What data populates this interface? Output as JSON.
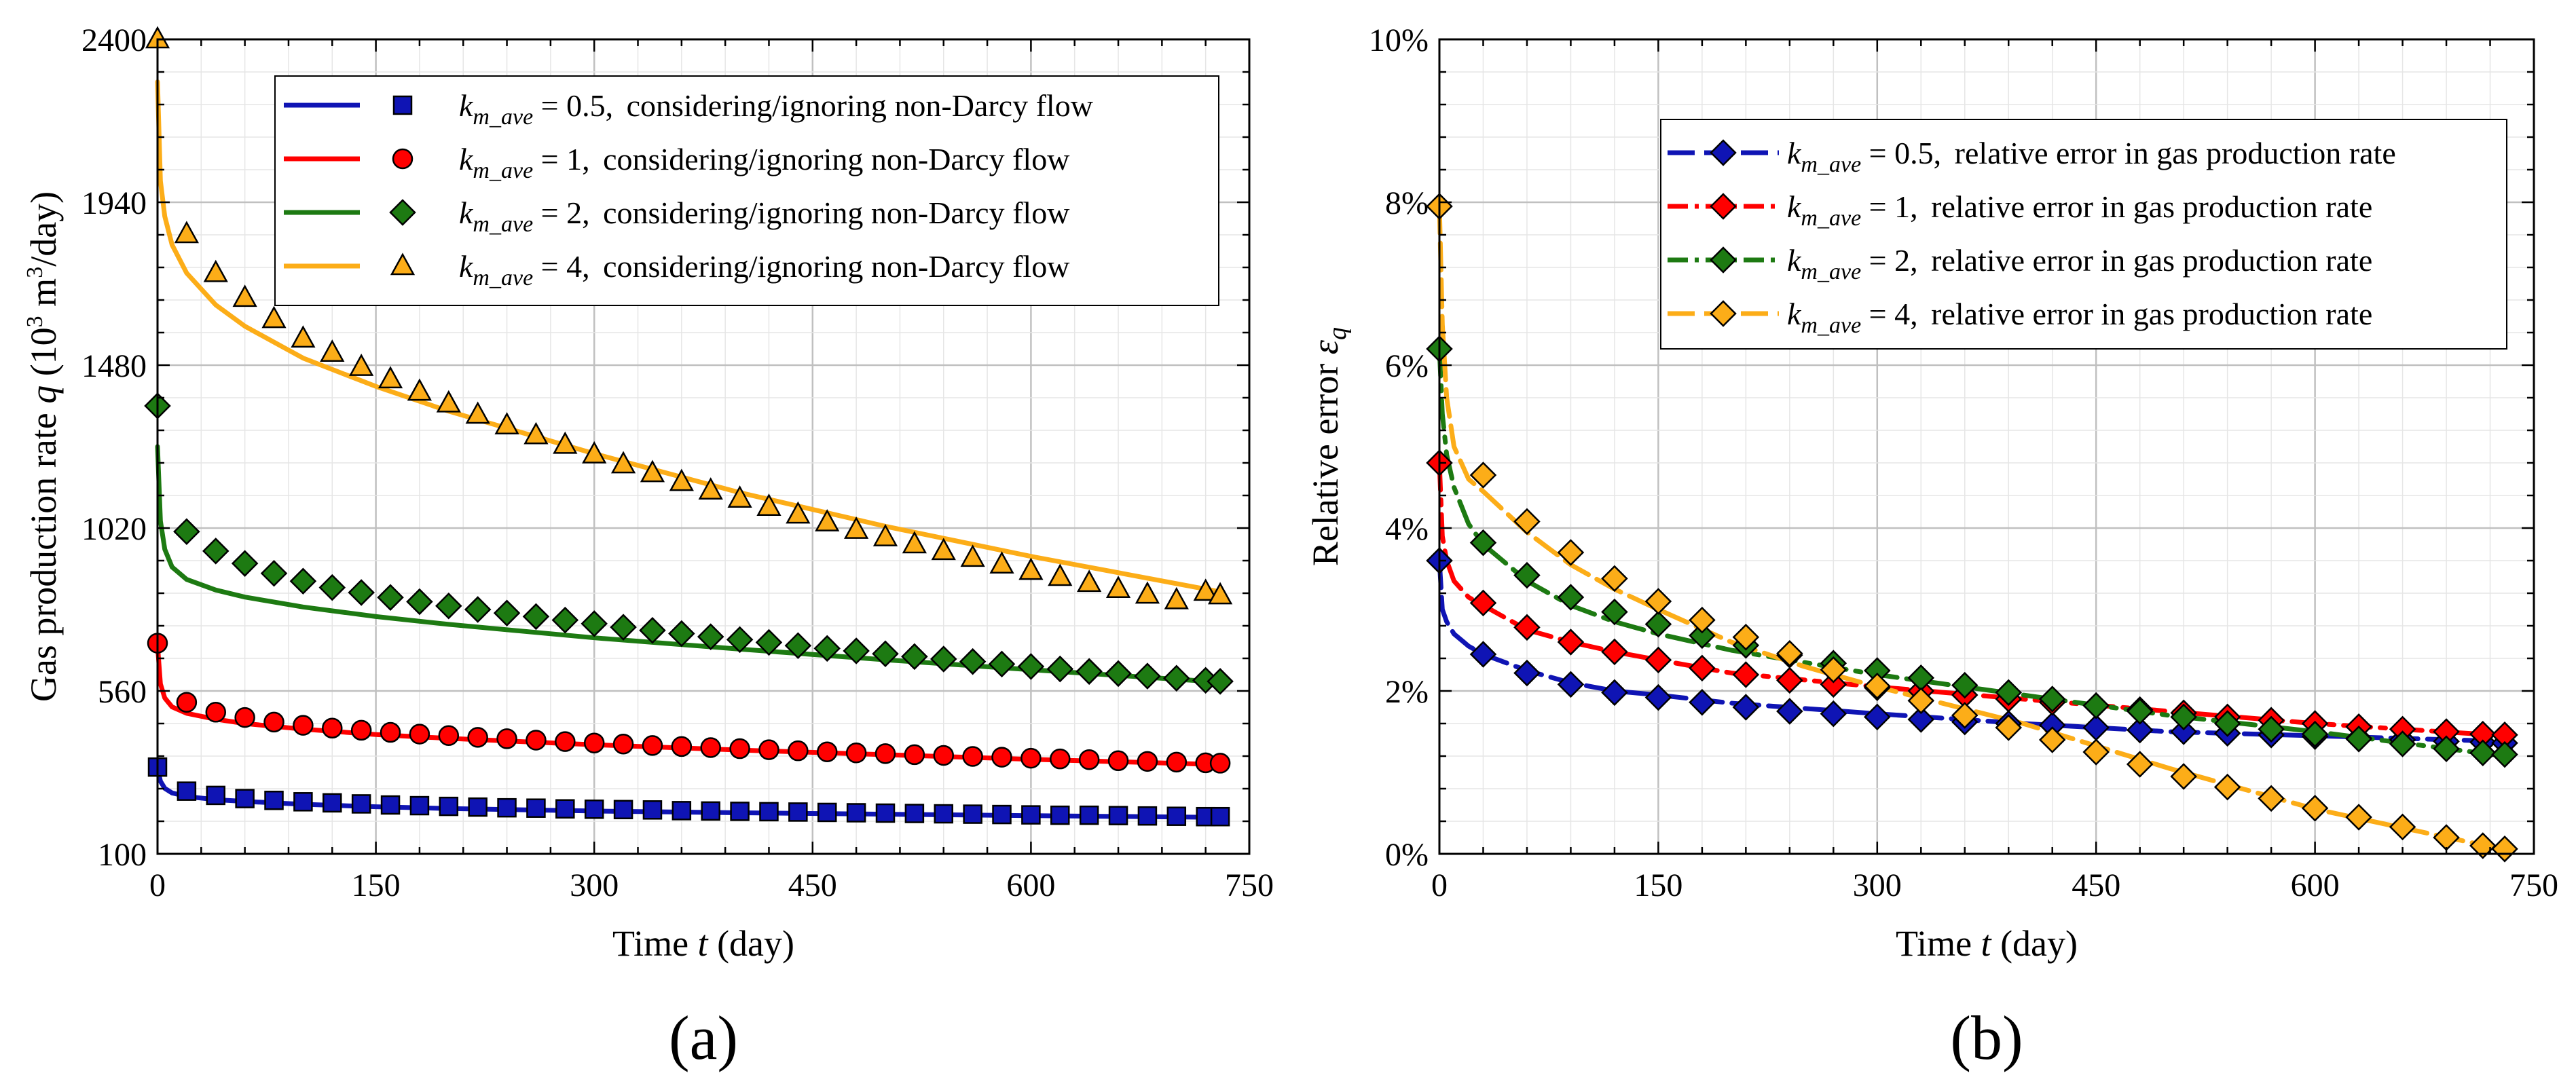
{
  "panels": [
    {
      "label": "(a)",
      "xlabel_parts": [
        "Time ",
        "t",
        " (day)"
      ],
      "ylabel_parts": [
        "Gas production rate ",
        "q",
        " (10",
        "3",
        " m",
        "3",
        "/day)"
      ],
      "xticks": [
        "0",
        "150",
        "300",
        "450",
        "600",
        "750"
      ],
      "yticks": [
        "100",
        "560",
        "1020",
        "1480",
        "1940",
        "2400"
      ],
      "legend": [
        {
          "sym": "k",
          "sub": "m_ave",
          "eq": " = 0.5, ",
          "desc": "considering/ignoring non-Darcy flow"
        },
        {
          "sym": "k",
          "sub": "m_ave",
          "eq": " = 1, ",
          "desc": "considering/ignoring non-Darcy flow"
        },
        {
          "sym": "k",
          "sub": "m_ave",
          "eq": " = 2, ",
          "desc": "considering/ignoring non-Darcy flow"
        },
        {
          "sym": "k",
          "sub": "m_ave",
          "eq": " = 4, ",
          "desc": "considering/ignoring non-Darcy flow"
        }
      ]
    },
    {
      "label": "(b)",
      "xlabel_parts": [
        "Time ",
        "t",
        " (day)"
      ],
      "ylabel_parts": [
        "Relative error ",
        "ε",
        "q"
      ],
      "xticks": [
        "0",
        "150",
        "300",
        "450",
        "600",
        "750"
      ],
      "yticks": [
        "0%",
        "2%",
        "4%",
        "6%",
        "8%",
        "10%"
      ],
      "legend": [
        {
          "sym": "k",
          "sub": "m_ave",
          "eq": " = 0.5, ",
          "desc": "relative error in gas production rate"
        },
        {
          "sym": "k",
          "sub": "m_ave",
          "eq": " = 1, ",
          "desc": "relative error in gas production rate"
        },
        {
          "sym": "k",
          "sub": "m_ave",
          "eq": " = 2, ",
          "desc": "relative error in gas production rate"
        },
        {
          "sym": "k",
          "sub": "m_ave",
          "eq": " = 4, ",
          "desc": "relative error in gas production rate"
        }
      ]
    }
  ],
  "colors": {
    "blue": "#0f14b4",
    "red": "#ff0000",
    "green": "#1d7a12",
    "orange": "#fcad18",
    "grid_major": "#c0c0c0",
    "grid_minor": "#e6e6e6"
  },
  "chart_data": [
    {
      "type": "line",
      "xlabel": "Time t (day)",
      "ylabel": "Gas production rate q (10^3 m^3/day)",
      "xlim": [
        0,
        750
      ],
      "ylim": [
        100,
        2400
      ],
      "grid": true,
      "legend_position": "top-right",
      "series": [
        {
          "name": "k_m_ave = 0.5, considering/ignoring non-Darcy flow",
          "color": "blue",
          "marker": "square",
          "curve_x": [
            0,
            2,
            5,
            10,
            20,
            40,
            60,
            100,
            150,
            200,
            300,
            400,
            500,
            600,
            730
          ],
          "curve_y": [
            345,
            305,
            285,
            272,
            262,
            253,
            248,
            240,
            233,
            228,
            221,
            216,
            212,
            208,
            203
          ],
          "points_x": [
            0,
            20,
            40,
            60,
            80,
            100,
            120,
            140,
            160,
            180,
            200,
            220,
            240,
            260,
            280,
            300,
            320,
            340,
            360,
            380,
            400,
            420,
            440,
            460,
            480,
            500,
            520,
            540,
            560,
            580,
            600,
            620,
            640,
            660,
            680,
            700,
            720,
            730
          ],
          "points_y": [
            345,
            277,
            265,
            256,
            251,
            247,
            244,
            241,
            238,
            236,
            234,
            232,
            230,
            229,
            227,
            226,
            225,
            224,
            222,
            221,
            220,
            219,
            218,
            217,
            216,
            215,
            214,
            213,
            212,
            211,
            210,
            209,
            209,
            208,
            207,
            206,
            205,
            205
          ]
        },
        {
          "name": "k_m_ave = 1, considering/ignoring non-Darcy flow",
          "color": "red",
          "marker": "circle",
          "curve_x": [
            0,
            2,
            5,
            10,
            20,
            40,
            60,
            100,
            150,
            200,
            300,
            400,
            500,
            600,
            730
          ],
          "curve_y": [
            690,
            580,
            540,
            515,
            497,
            480,
            468,
            452,
            437,
            426,
            408,
            393,
            380,
            367,
            352
          ],
          "points_x": [
            0,
            20,
            40,
            60,
            80,
            100,
            120,
            140,
            160,
            180,
            200,
            220,
            240,
            260,
            280,
            300,
            320,
            340,
            360,
            380,
            400,
            420,
            440,
            460,
            480,
            500,
            520,
            540,
            560,
            580,
            600,
            620,
            640,
            660,
            680,
            700,
            720,
            730
          ],
          "points_y": [
            695,
            528,
            500,
            485,
            472,
            463,
            455,
            449,
            443,
            438,
            434,
            429,
            425,
            421,
            417,
            413,
            410,
            406,
            403,
            400,
            397,
            394,
            391,
            388,
            385,
            383,
            380,
            378,
            375,
            373,
            370,
            368,
            366,
            363,
            361,
            359,
            357,
            356
          ]
        },
        {
          "name": "k_m_ave = 2, considering/ignoring non-Darcy flow",
          "color": "green",
          "marker": "diamond",
          "curve_x": [
            0,
            2,
            5,
            10,
            20,
            40,
            60,
            100,
            150,
            200,
            300,
            400,
            500,
            600,
            730
          ],
          "curve_y": [
            1250,
            1040,
            960,
            910,
            875,
            845,
            825,
            797,
            770,
            748,
            710,
            678,
            648,
            620,
            585
          ],
          "points_x": [
            0,
            20,
            40,
            60,
            80,
            100,
            120,
            140,
            160,
            180,
            200,
            220,
            240,
            260,
            280,
            300,
            320,
            340,
            360,
            380,
            400,
            420,
            440,
            460,
            480,
            500,
            520,
            540,
            560,
            580,
            600,
            620,
            640,
            660,
            680,
            700,
            720,
            730
          ],
          "points_y": [
            1365,
            1010,
            955,
            920,
            892,
            870,
            852,
            838,
            824,
            812,
            800,
            790,
            780,
            770,
            760,
            750,
            740,
            731,
            722,
            713,
            705,
            697,
            688,
            680,
            673,
            665,
            657,
            650,
            643,
            636,
            629,
            622,
            615,
            609,
            602,
            596,
            590,
            587
          ]
        },
        {
          "name": "k_m_ave = 4, considering/ignoring non-Darcy flow",
          "color": "orange",
          "marker": "triangle",
          "curve_x": [
            0,
            2,
            5,
            10,
            20,
            40,
            60,
            100,
            150,
            200,
            250,
            300,
            400,
            500,
            600,
            730
          ],
          "curve_y": [
            2280,
            2000,
            1900,
            1820,
            1740,
            1650,
            1590,
            1500,
            1420,
            1350,
            1290,
            1230,
            1120,
            1025,
            940,
            840
          ],
          "points_x": [
            0,
            20,
            40,
            60,
            80,
            100,
            120,
            140,
            160,
            180,
            200,
            220,
            240,
            260,
            280,
            300,
            320,
            340,
            360,
            380,
            400,
            420,
            440,
            460,
            480,
            500,
            520,
            540,
            560,
            580,
            600,
            620,
            640,
            660,
            680,
            700,
            720,
            730
          ],
          "points_y": [
            2400,
            1850,
            1740,
            1670,
            1610,
            1555,
            1515,
            1475,
            1440,
            1405,
            1372,
            1340,
            1310,
            1282,
            1255,
            1228,
            1200,
            1175,
            1150,
            1126,
            1103,
            1080,
            1058,
            1036,
            1015,
            994,
            974,
            955,
            936,
            917,
            899,
            882,
            865,
            848,
            832,
            816,
            840,
            830
          ]
        }
      ]
    },
    {
      "type": "line",
      "xlabel": "Time t (day)",
      "ylabel": "Relative error ε_q",
      "xlim": [
        0,
        750
      ],
      "ylim": [
        0,
        10
      ],
      "y_unit": "%",
      "grid": true,
      "legend_position": "top-right",
      "series": [
        {
          "name": "k_m_ave = 0.5, relative error in gas production rate",
          "color": "blue",
          "marker": "diamond",
          "curve_x": [
            0,
            2,
            5,
            10,
            20,
            30,
            60,
            90,
            120,
            150,
            200,
            300,
            400,
            500,
            600,
            730
          ],
          "curve_y": [
            3.6,
            3.0,
            2.85,
            2.7,
            2.55,
            2.45,
            2.25,
            2.1,
            2.0,
            1.95,
            1.85,
            1.72,
            1.6,
            1.5,
            1.45,
            1.38
          ],
          "points_x": [
            0,
            30,
            60,
            90,
            120,
            150,
            180,
            210,
            240,
            270,
            300,
            330,
            360,
            390,
            420,
            450,
            480,
            510,
            540,
            570,
            600,
            630,
            660,
            690,
            715,
            730
          ],
          "points_y": [
            3.6,
            2.45,
            2.22,
            2.08,
            1.98,
            1.92,
            1.86,
            1.8,
            1.75,
            1.72,
            1.68,
            1.65,
            1.62,
            1.6,
            1.58,
            1.55,
            1.52,
            1.5,
            1.48,
            1.46,
            1.44,
            1.42,
            1.4,
            1.38,
            1.37,
            1.36
          ]
        },
        {
          "name": "k_m_ave = 1, relative error in gas production rate",
          "color": "red",
          "marker": "diamond",
          "curve_x": [
            0,
            2,
            5,
            10,
            20,
            30,
            60,
            90,
            120,
            150,
            200,
            300,
            400,
            500,
            600,
            730
          ],
          "curve_y": [
            4.8,
            3.9,
            3.6,
            3.35,
            3.15,
            3.05,
            2.75,
            2.6,
            2.48,
            2.38,
            2.22,
            2.05,
            1.9,
            1.75,
            1.6,
            1.45
          ],
          "points_x": [
            0,
            30,
            60,
            90,
            120,
            150,
            180,
            210,
            240,
            270,
            300,
            330,
            360,
            390,
            420,
            450,
            480,
            510,
            540,
            570,
            600,
            630,
            660,
            690,
            715,
            730
          ],
          "points_y": [
            4.8,
            3.08,
            2.78,
            2.6,
            2.48,
            2.38,
            2.28,
            2.2,
            2.13,
            2.08,
            2.04,
            2.0,
            1.95,
            1.9,
            1.86,
            1.82,
            1.77,
            1.73,
            1.68,
            1.64,
            1.6,
            1.56,
            1.53,
            1.5,
            1.47,
            1.46
          ]
        },
        {
          "name": "k_m_ave = 2, relative error in gas production rate",
          "color": "green",
          "marker": "diamond",
          "curve_x": [
            0,
            2,
            5,
            10,
            20,
            30,
            60,
            90,
            120,
            150,
            200,
            300,
            400,
            500,
            600,
            730
          ],
          "curve_y": [
            6.2,
            5.4,
            4.9,
            4.5,
            4.05,
            3.8,
            3.35,
            3.05,
            2.85,
            2.7,
            2.5,
            2.2,
            1.95,
            1.7,
            1.5,
            1.2
          ],
          "points_x": [
            0,
            30,
            60,
            90,
            120,
            150,
            180,
            210,
            240,
            270,
            300,
            330,
            360,
            390,
            420,
            450,
            480,
            510,
            540,
            570,
            600,
            630,
            660,
            690,
            715,
            730
          ],
          "points_y": [
            6.2,
            3.82,
            3.42,
            3.15,
            2.97,
            2.82,
            2.68,
            2.56,
            2.44,
            2.34,
            2.25,
            2.16,
            2.07,
            1.98,
            1.9,
            1.82,
            1.75,
            1.68,
            1.6,
            1.53,
            1.47,
            1.41,
            1.35,
            1.29,
            1.24,
            1.22
          ]
        },
        {
          "name": "k_m_ave = 4, relative error in gas production rate",
          "color": "orange",
          "marker": "diamond",
          "curve_x": [
            0,
            2,
            5,
            10,
            20,
            30,
            60,
            90,
            120,
            150,
            200,
            250,
            300,
            400,
            500,
            600,
            730
          ],
          "curve_y": [
            7.95,
            6.5,
            5.6,
            5.0,
            4.6,
            4.45,
            3.95,
            3.55,
            3.25,
            3.0,
            2.6,
            2.3,
            2.05,
            1.6,
            1.05,
            0.55,
            0.05
          ],
          "points_x": [
            0,
            30,
            60,
            90,
            120,
            150,
            180,
            210,
            240,
            270,
            300,
            330,
            360,
            390,
            420,
            450,
            480,
            510,
            540,
            570,
            600,
            630,
            660,
            690,
            715,
            730
          ],
          "points_y": [
            7.95,
            4.65,
            4.08,
            3.7,
            3.38,
            3.1,
            2.87,
            2.66,
            2.46,
            2.26,
            2.06,
            1.88,
            1.7,
            1.55,
            1.4,
            1.25,
            1.1,
            0.95,
            0.82,
            0.68,
            0.56,
            0.45,
            0.33,
            0.2,
            0.1,
            0.06
          ]
        }
      ]
    }
  ]
}
